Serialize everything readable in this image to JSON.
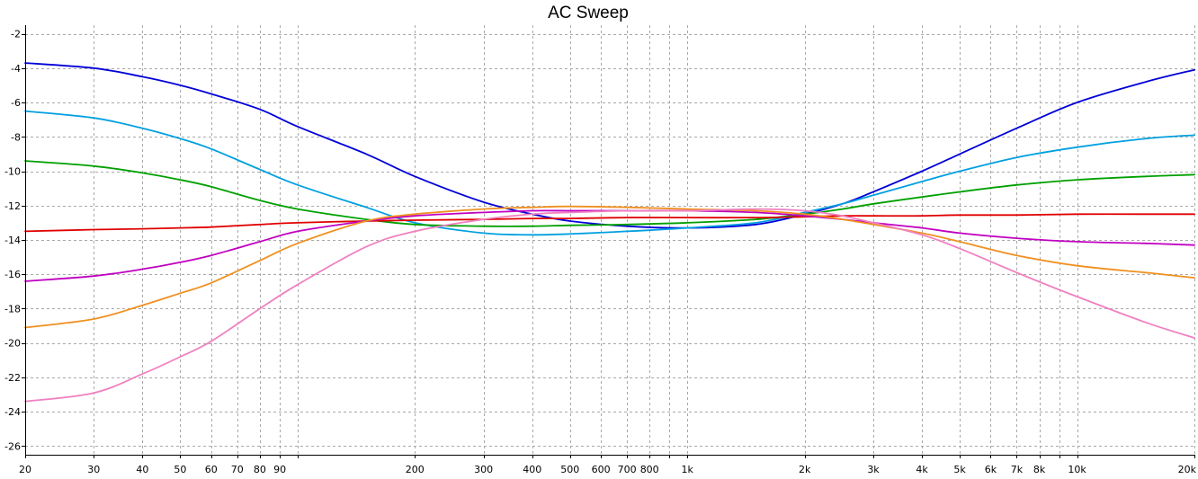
{
  "chart_data": {
    "type": "line",
    "title": "AC Sweep",
    "xlabel": "",
    "ylabel": "",
    "xscale": "log",
    "xlim": [
      20,
      20000
    ],
    "ylim": [
      -26.5,
      -1.5
    ],
    "grid": true,
    "legend": "none",
    "x_ticks": [
      {
        "v": 20,
        "label": "20"
      },
      {
        "v": 30,
        "label": "30"
      },
      {
        "v": 40,
        "label": "40"
      },
      {
        "v": 50,
        "label": "50"
      },
      {
        "v": 60,
        "label": "60"
      },
      {
        "v": 70,
        "label": "70"
      },
      {
        "v": 80,
        "label": "80"
      },
      {
        "v": 90,
        "label": "90"
      },
      {
        "v": 100,
        "label": ""
      },
      {
        "v": 200,
        "label": "200"
      },
      {
        "v": 300,
        "label": "300"
      },
      {
        "v": 400,
        "label": "400"
      },
      {
        "v": 500,
        "label": "500"
      },
      {
        "v": 600,
        "label": "600"
      },
      {
        "v": 700,
        "label": "700"
      },
      {
        "v": 800,
        "label": "800"
      },
      {
        "v": 900,
        "label": ""
      },
      {
        "v": 1000,
        "label": "1k"
      },
      {
        "v": 2000,
        "label": "2k"
      },
      {
        "v": 3000,
        "label": "3k"
      },
      {
        "v": 4000,
        "label": "4k"
      },
      {
        "v": 5000,
        "label": "5k"
      },
      {
        "v": 6000,
        "label": "6k"
      },
      {
        "v": 7000,
        "label": "7k"
      },
      {
        "v": 8000,
        "label": "8k"
      },
      {
        "v": 9000,
        "label": ""
      },
      {
        "v": 10000,
        "label": "10k"
      },
      {
        "v": 20000,
        "label": "20k"
      }
    ],
    "y_ticks": [
      {
        "v": -2,
        "label": "-2"
      },
      {
        "v": -4,
        "label": "-4"
      },
      {
        "v": -6,
        "label": "-6"
      },
      {
        "v": -8,
        "label": "-8"
      },
      {
        "v": -10,
        "label": "-10"
      },
      {
        "v": -12,
        "label": "-12"
      },
      {
        "v": -14,
        "label": "-14"
      },
      {
        "v": -16,
        "label": "-16"
      },
      {
        "v": -18,
        "label": "-18"
      },
      {
        "v": -20,
        "label": "-20"
      },
      {
        "v": -22,
        "label": "-22"
      },
      {
        "v": -24,
        "label": "-24"
      },
      {
        "v": -26,
        "label": "-26"
      }
    ],
    "x": [
      20,
      30,
      40,
      50,
      60,
      80,
      100,
      150,
      200,
      300,
      400,
      500,
      700,
      1000,
      1500,
      2000,
      2500,
      3000,
      4000,
      5000,
      7000,
      10000,
      15000,
      20000
    ],
    "series": [
      {
        "color": "#0000d8",
        "values": [
          -3.7,
          -4.0,
          -4.5,
          -5.0,
          -5.5,
          -6.4,
          -7.4,
          -9.0,
          -10.3,
          -11.8,
          -12.5,
          -12.9,
          -13.2,
          -13.3,
          -13.1,
          -12.5,
          -11.9,
          -11.2,
          -10.0,
          -9.0,
          -7.5,
          -6.0,
          -4.8,
          -4.1
        ]
      },
      {
        "color": "#00a0e0",
        "values": [
          -6.5,
          -6.9,
          -7.5,
          -8.1,
          -8.7,
          -9.9,
          -10.8,
          -12.1,
          -13.0,
          -13.6,
          -13.7,
          -13.65,
          -13.5,
          -13.3,
          -13.0,
          -12.4,
          -11.9,
          -11.4,
          -10.6,
          -10.0,
          -9.2,
          -8.6,
          -8.1,
          -7.9
        ]
      },
      {
        "color": "#00a000",
        "values": [
          -9.4,
          -9.7,
          -10.1,
          -10.5,
          -10.9,
          -11.7,
          -12.2,
          -12.8,
          -13.1,
          -13.2,
          -13.2,
          -13.15,
          -13.1,
          -13.0,
          -12.8,
          -12.5,
          -12.2,
          -11.9,
          -11.5,
          -11.2,
          -10.8,
          -10.5,
          -10.3,
          -10.2
        ]
      },
      {
        "color": "#e00000",
        "values": [
          -13.5,
          -13.4,
          -13.35,
          -13.3,
          -13.25,
          -13.1,
          -13.0,
          -12.9,
          -12.85,
          -12.8,
          -12.75,
          -12.75,
          -12.7,
          -12.7,
          -12.7,
          -12.65,
          -12.6,
          -12.6,
          -12.6,
          -12.55,
          -12.55,
          -12.5,
          -12.5,
          -12.5
        ]
      },
      {
        "color": "#c000c0",
        "values": [
          -16.4,
          -16.1,
          -15.7,
          -15.3,
          -14.9,
          -14.1,
          -13.5,
          -12.9,
          -12.6,
          -12.4,
          -12.3,
          -12.3,
          -12.3,
          -12.3,
          -12.4,
          -12.6,
          -12.8,
          -13.0,
          -13.3,
          -13.6,
          -13.9,
          -14.1,
          -14.2,
          -14.3
        ]
      },
      {
        "color": "#f09020",
        "values": [
          -19.1,
          -18.6,
          -17.8,
          -17.1,
          -16.5,
          -15.2,
          -14.2,
          -12.9,
          -12.5,
          -12.2,
          -12.1,
          -12.05,
          -12.1,
          -12.2,
          -12.3,
          -12.5,
          -12.8,
          -13.1,
          -13.6,
          -14.1,
          -14.9,
          -15.5,
          -15.9,
          -16.2
        ]
      },
      {
        "color": "#f080c0",
        "values": [
          -23.4,
          -22.9,
          -21.8,
          -20.8,
          -19.9,
          -18.0,
          -16.6,
          -14.4,
          -13.5,
          -12.8,
          -12.5,
          -12.4,
          -12.3,
          -12.3,
          -12.2,
          -12.3,
          -12.6,
          -13.0,
          -13.7,
          -14.5,
          -15.9,
          -17.3,
          -18.8,
          -19.7
        ]
      }
    ]
  }
}
